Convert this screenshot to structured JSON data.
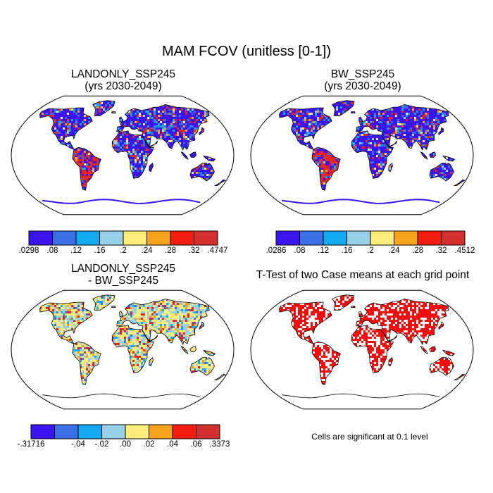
{
  "main_title": "MAM FCOV (unitless [0-1])",
  "panels": [
    {
      "title": "LANDONLY_SSP245\n(yrs 2030-2049)",
      "kind": "field",
      "colorbar": {
        "colors": [
          "#3b14f0",
          "#3c6ee6",
          "#14a9ef",
          "#98cfe9",
          "#fdec7a",
          "#f7a21c",
          "#f51c12",
          "#d4302f"
        ],
        "labels": [
          ".0298",
          ".08",
          ".12",
          ".16",
          ".2",
          ".24",
          ".28",
          ".32",
          ".4747"
        ]
      }
    },
    {
      "title": "BW_SSP245\n(yrs 2030-2049)",
      "kind": "field",
      "colorbar": {
        "colors": [
          "#3b14f0",
          "#3c6ee6",
          "#14a9ef",
          "#98cfe9",
          "#fdec7a",
          "#f7a21c",
          "#f51c12",
          "#d4302f"
        ],
        "labels": [
          ".0286",
          ".08",
          ".12",
          ".16",
          ".2",
          ".24",
          ".28",
          ".32",
          ".4512"
        ]
      }
    },
    {
      "title": "LANDONLY_SSP245\n- BW_SSP245",
      "kind": "difference",
      "colorbar": {
        "colors": [
          "#3b14f0",
          "#3c6ee6",
          "#14a9ef",
          "#98cfe9",
          "#fdec7a",
          "#f7a21c",
          "#f51c12",
          "#d4302f"
        ],
        "labels": [
          "-.31716",
          "-.04",
          "-.02",
          ".00",
          ".02",
          ".04",
          ".06",
          ".3373"
        ]
      }
    },
    {
      "title": "T-Test of two Case means at each grid point",
      "kind": "significance",
      "note": "Cells are significant at 0.1 level"
    }
  ]
}
